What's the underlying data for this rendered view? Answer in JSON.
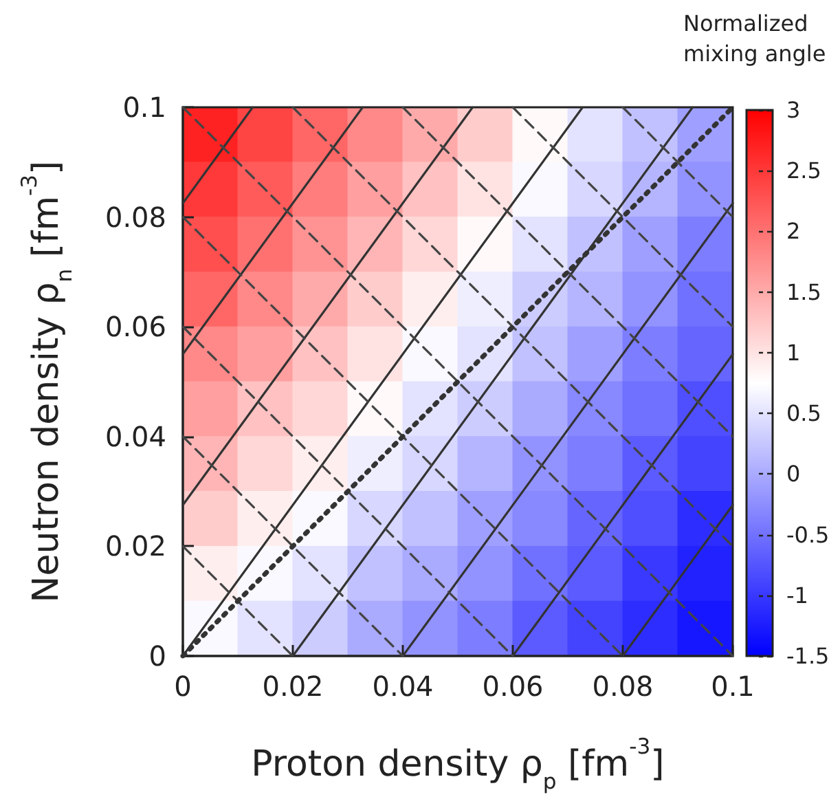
{
  "chart_data": [
    {
      "type": "heatmap",
      "clabel": "Normalized mixing angle",
      "categories": [
        null,
        null,
        null,
        null,
        null,
        null,
        null,
        null,
        null,
        null
      ],
      "y_categories": [
        null,
        null,
        null,
        null,
        null,
        null,
        null,
        null,
        null,
        null
      ],
      "cells": [
        [
          2.7,
          2.4,
          2.1,
          1.8,
          1.5,
          1.2,
          0.8,
          0.5,
          0.2,
          -0.1
        ],
        [
          2.5,
          2.2,
          1.9,
          1.6,
          1.3,
          1.0,
          0.7,
          0.4,
          0.1,
          -0.2
        ],
        [
          2.3,
          2.0,
          1.7,
          1.4,
          1.1,
          0.8,
          0.5,
          0.2,
          -0.1,
          -0.4
        ],
        [
          2.1,
          1.8,
          1.5,
          1.2,
          0.9,
          0.6,
          0.3,
          0.1,
          -0.2,
          -0.5
        ],
        [
          1.8,
          1.6,
          1.3,
          1.0,
          0.7,
          0.5,
          0.2,
          -0.1,
          -0.4,
          -0.6
        ],
        [
          1.6,
          1.3,
          1.1,
          0.8,
          0.5,
          0.3,
          0.0,
          -0.3,
          -0.5,
          -0.8
        ],
        [
          1.4,
          1.1,
          0.9,
          0.6,
          0.4,
          0.1,
          -0.2,
          -0.4,
          -0.7,
          -0.9
        ],
        [
          1.2,
          0.9,
          0.7,
          0.4,
          0.2,
          -0.1,
          -0.3,
          -0.6,
          -0.8,
          -1.1
        ],
        [
          0.9,
          0.7,
          0.5,
          0.2,
          0.0,
          -0.2,
          -0.5,
          -0.7,
          -1.0,
          -1.2
        ],
        [
          0.7,
          0.5,
          0.3,
          0.0,
          -0.2,
          -0.4,
          -0.7,
          -0.9,
          -1.1,
          -1.3
        ]
      ],
      "clim": [
        -1.5,
        3
      ],
      "cticks": [
        -1.5,
        -1,
        -0.5,
        0,
        0.5,
        1,
        1.5,
        2,
        2.5,
        3
      ]
    },
    {
      "type": "line",
      "xlabel": "Proton density ρ$_{p}$ [fm$^{-3}$]",
      "ylabel": "Neutron density ρ$_{n}$ [fm$^{-3}$]",
      "xlim": [
        0,
        0.1
      ],
      "xticks": [
        0,
        0.02,
        0.04,
        0.06,
        0.08,
        0.1
      ],
      "ylim": [
        0,
        0.1
      ],
      "yticks": [
        0,
        0.02,
        0.04,
        0.06,
        0.08,
        0.1
      ],
      "marker": "none",
      "series": [
        {
          "color": "#333333",
          "line_style": "solid",
          "x": [
            0,
            0.0127
          ],
          "values": [
            0.0825,
            0.1
          ]
        },
        {
          "color": "#333333",
          "line_style": "solid",
          "x": [
            0,
            0.0327
          ],
          "values": [
            0.055,
            0.1
          ]
        },
        {
          "color": "#333333",
          "line_style": "solid",
          "x": [
            0,
            0.0527
          ],
          "values": [
            0.0275,
            0.1
          ]
        },
        {
          "color": "#333333",
          "line_style": "solid",
          "x": [
            0,
            0.0727
          ],
          "values": [
            0,
            0.1
          ]
        },
        {
          "color": "#333333",
          "line_style": "solid",
          "x": [
            0.02,
            0.0927
          ],
          "values": [
            0,
            0.1
          ]
        },
        {
          "color": "#333333",
          "line_style": "solid",
          "x": [
            0.04,
            0.1
          ],
          "values": [
            0,
            0.0825
          ]
        },
        {
          "color": "#333333",
          "line_style": "solid",
          "x": [
            0.06,
            0.1
          ],
          "values": [
            0,
            0.055
          ]
        },
        {
          "color": "#333333",
          "line_style": "solid",
          "x": [
            0.08,
            0.1
          ],
          "values": [
            0,
            0.0275
          ]
        },
        {
          "color": "#444444",
          "line_style": "dashed",
          "x": [
            0,
            0.02
          ],
          "values": [
            0.02,
            0
          ]
        },
        {
          "color": "#444444",
          "line_style": "dashed",
          "x": [
            0,
            0.04
          ],
          "values": [
            0.04,
            0
          ]
        },
        {
          "color": "#444444",
          "line_style": "dashed",
          "x": [
            0,
            0.06
          ],
          "values": [
            0.06,
            0
          ]
        },
        {
          "color": "#444444",
          "line_style": "dashed",
          "x": [
            0,
            0.08
          ],
          "values": [
            0.08,
            0
          ]
        },
        {
          "color": "#444444",
          "line_style": "dashed",
          "x": [
            0,
            0.1
          ],
          "values": [
            0.1,
            0
          ]
        },
        {
          "color": "#444444",
          "line_style": "dashed",
          "x": [
            0.02,
            0.1
          ],
          "values": [
            0.1,
            0.02
          ]
        },
        {
          "color": "#444444",
          "line_style": "dashed",
          "x": [
            0.04,
            0.1
          ],
          "values": [
            0.1,
            0.04
          ]
        },
        {
          "color": "#444444",
          "line_style": "dashed",
          "x": [
            0.06,
            0.1
          ],
          "values": [
            0.1,
            0.06
          ]
        },
        {
          "color": "#444444",
          "line_style": "dashed",
          "x": [
            0.08,
            0.1
          ],
          "values": [
            0.1,
            0.08
          ]
        },
        {
          "color": "#333333",
          "line_style": "dotted",
          "x": [
            0,
            0.1
          ],
          "values": [
            0,
            0.1
          ]
        }
      ]
    }
  ]
}
